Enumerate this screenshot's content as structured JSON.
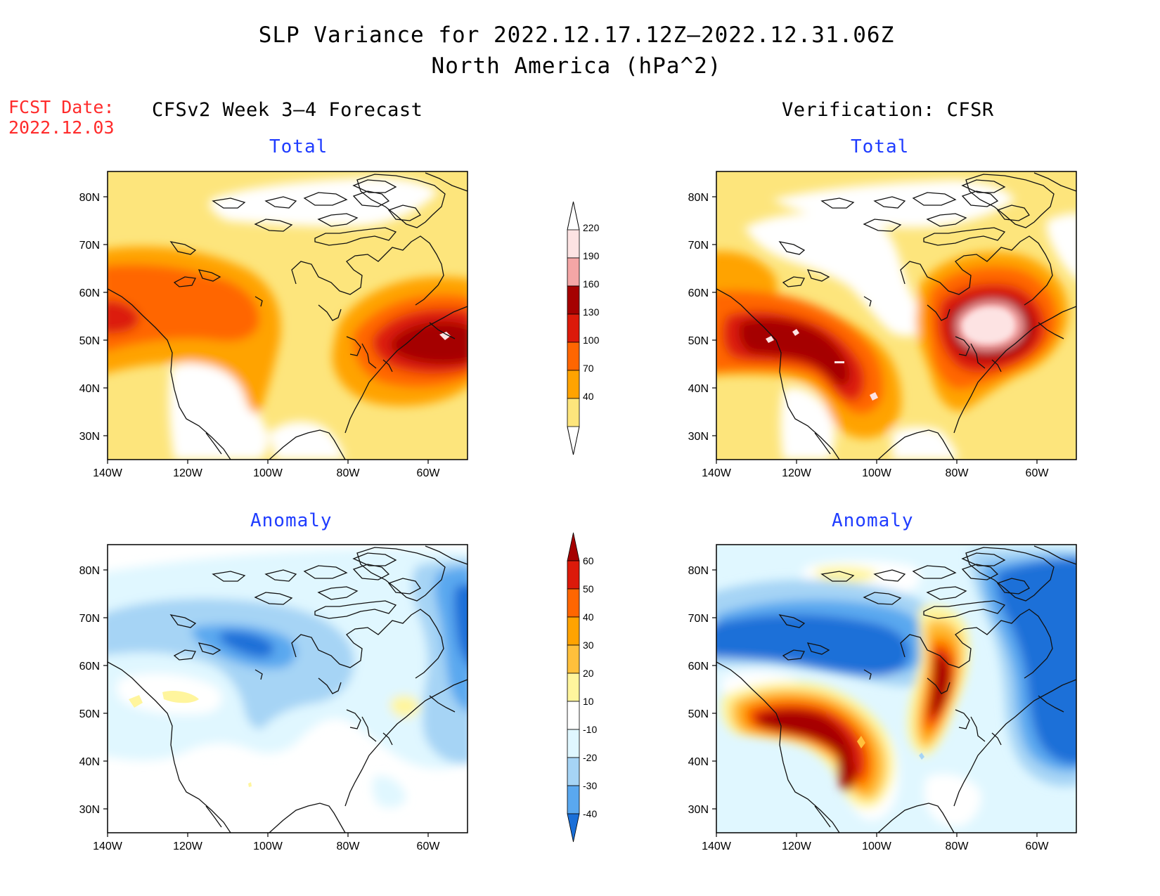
{
  "header": {
    "title_line1": "SLP Variance for 2022.12.17.12Z–2022.12.31.06Z",
    "title_line2": "North America (hPa^2)",
    "fcst_date_label": "FCST Date:",
    "fcst_date_value": "2022.12.03",
    "left_column": "CFSv2 Week 3–4 Forecast",
    "right_column": "Verification: CFSR"
  },
  "panels": {
    "forecast_total": {
      "title": "Total"
    },
    "verif_total": {
      "title": "Total"
    },
    "forecast_anomaly": {
      "title": "Anomaly"
    },
    "verif_anomaly": {
      "title": "Anomaly"
    }
  },
  "axes": {
    "lat_labels": [
      "80N",
      "70N",
      "60N",
      "50N",
      "40N",
      "30N"
    ],
    "lon_labels": [
      "140W",
      "120W",
      "100W",
      "80W",
      "60W"
    ]
  },
  "colorbars": {
    "total": {
      "labels": [
        "220",
        "190",
        "160",
        "130",
        "100",
        "70",
        "40"
      ],
      "colors": [
        "#fde3e3",
        "#f4a6a6",
        "#a50000",
        "#dc1a0a",
        "#ff6600",
        "#ffa300",
        "#fde57c"
      ]
    },
    "anomaly": {
      "labels": [
        "60",
        "50",
        "40",
        "30",
        "20",
        "10",
        "-10",
        "-20",
        "-30",
        "-40"
      ],
      "colors": [
        "#a50000",
        "#dc1a0a",
        "#ff6600",
        "#ffa300",
        "#ffc03c",
        "#fff59d",
        "#ffffff",
        "#e0f7ff",
        "#a6d4f5",
        "#5aa8ef",
        "#1a6fd8"
      ]
    }
  },
  "palette": {
    "white": "#ffffff",
    "yellow": "#fde57c",
    "light_orange": "#ffc03c",
    "orange": "#ffa300",
    "dark_orange": "#ff6600",
    "red": "#dc1a0a",
    "dark_red": "#a50000",
    "pink": "#f4a6a6",
    "light_pink": "#fde3e3",
    "light_blue": "#e0f7ff",
    "sky_blue": "#a6d4f5",
    "mid_blue": "#5aa8ef",
    "blue": "#1a6fd8",
    "title_blue": "#1f3cff",
    "fcst_red": "#ff2b2b"
  }
}
